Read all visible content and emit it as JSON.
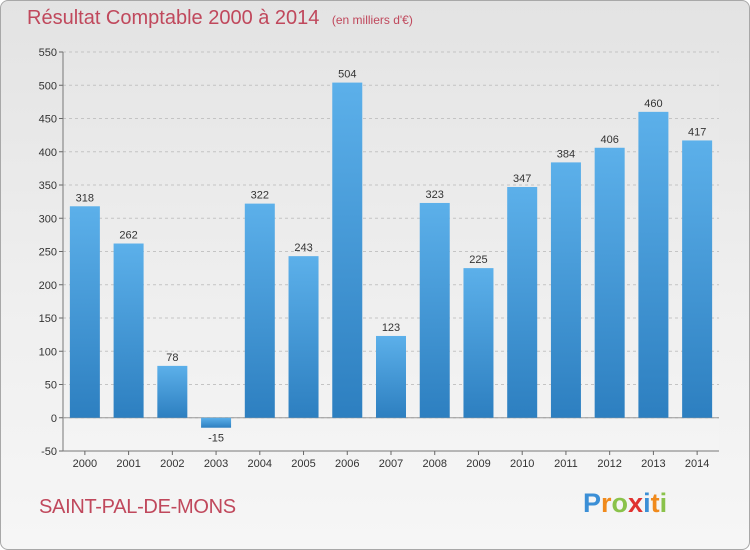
{
  "title": "Résultat Comptable 2000 à 2014",
  "unit": "(en milliers d'€)",
  "town": "SAINT-PAL-DE-MONS",
  "logo": {
    "letters": [
      {
        "ch": "P",
        "color": "#3b8fd6"
      },
      {
        "ch": "r",
        "color": "#f08a1c"
      },
      {
        "ch": "o",
        "color": "#8ac24a"
      },
      {
        "ch": "x",
        "color": "#e0312f"
      },
      {
        "ch": "i",
        "color": "#3b8fd6"
      },
      {
        "ch": "t",
        "color": "#f08a1c"
      },
      {
        "ch": "i",
        "color": "#8ac24a"
      }
    ]
  },
  "chart_data": {
    "type": "bar",
    "categories": [
      "2000",
      "2001",
      "2002",
      "2003",
      "2004",
      "2005",
      "2006",
      "2007",
      "2008",
      "2009",
      "2010",
      "2011",
      "2012",
      "2013",
      "2014"
    ],
    "values": [
      318,
      262,
      78,
      -15,
      322,
      243,
      504,
      123,
      323,
      225,
      347,
      384,
      406,
      460,
      417
    ],
    "ylim": [
      -50,
      550
    ],
    "yticks": [
      -50,
      0,
      50,
      100,
      150,
      200,
      250,
      300,
      350,
      400,
      450,
      500,
      550
    ],
    "grid": true,
    "bar_color_light": "#5cb0ea",
    "bar_color_dark": "#2d7fc0",
    "title": "Résultat Comptable 2000 à 2014",
    "xlabel": "",
    "ylabel": ""
  }
}
